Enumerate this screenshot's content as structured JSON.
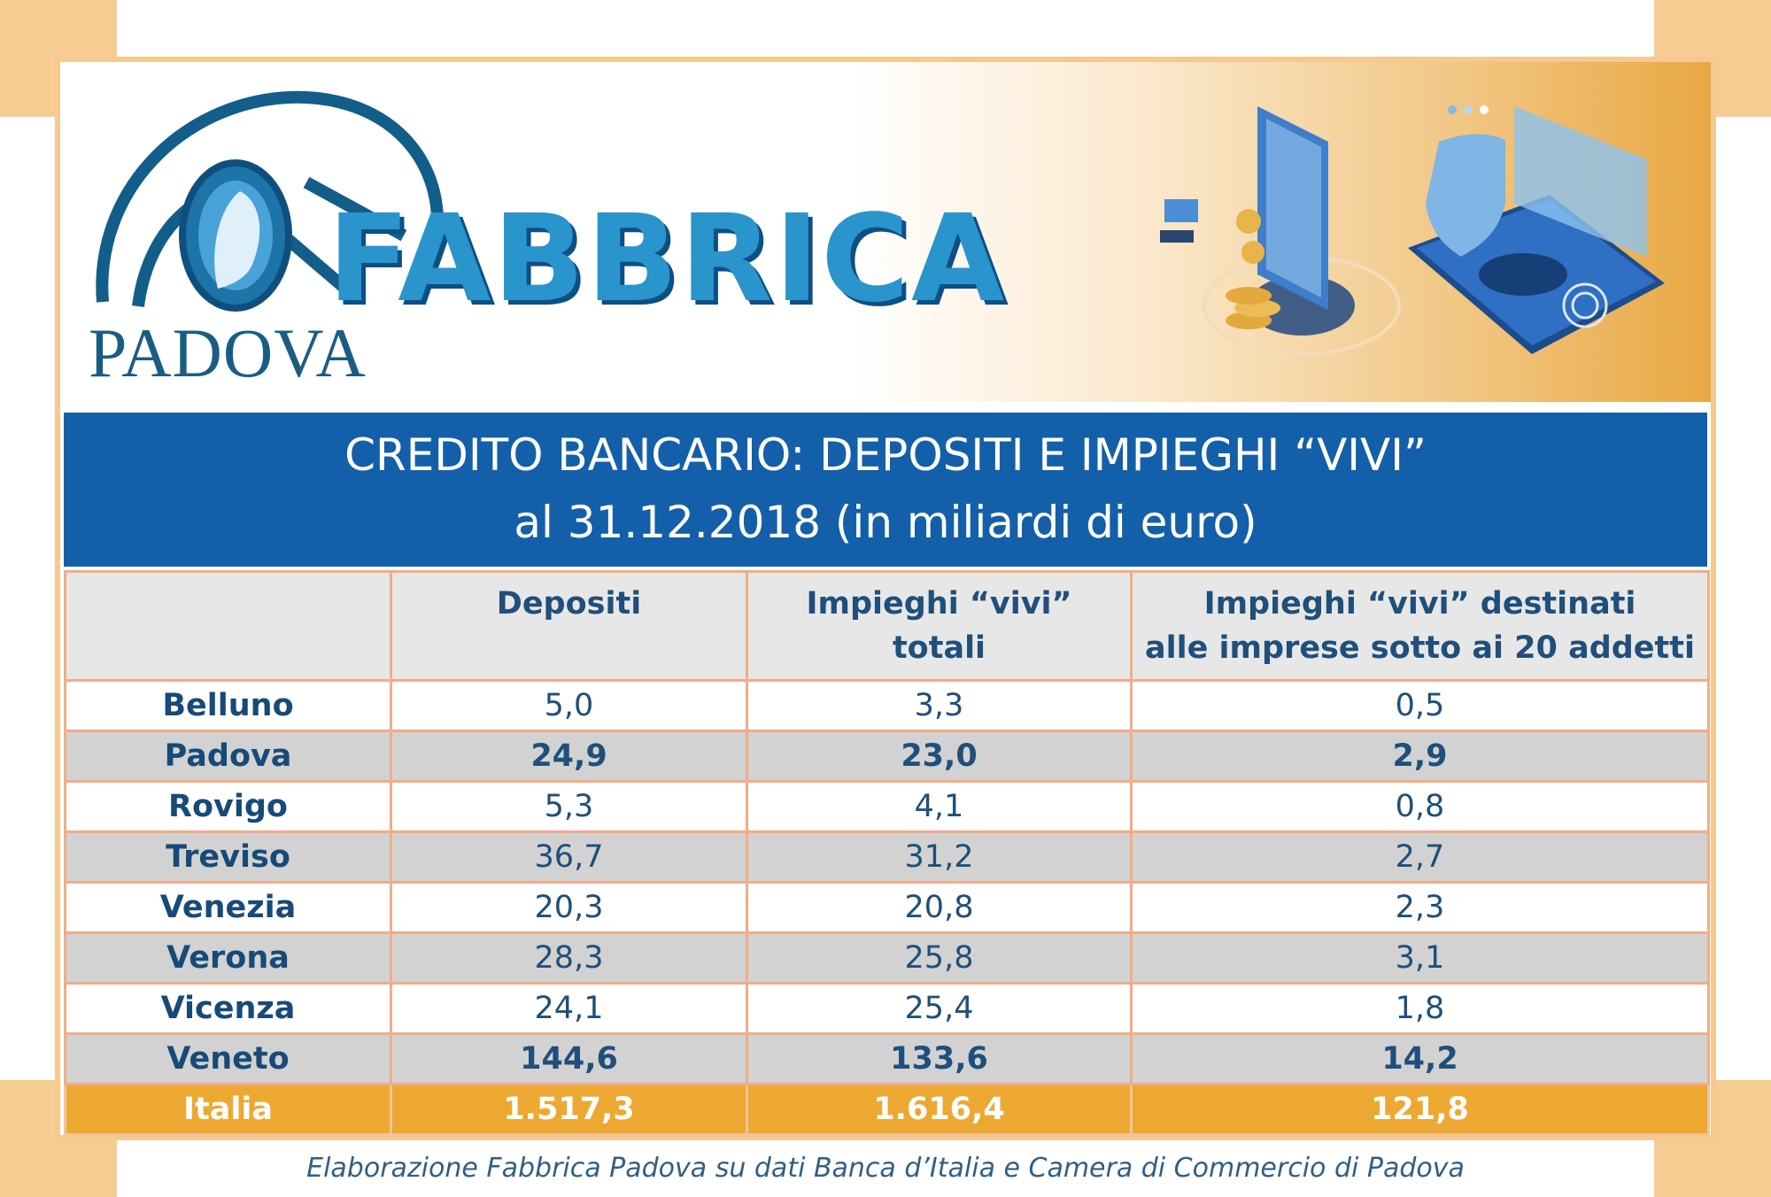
{
  "brand": {
    "name": "FABBRICA",
    "city": "PADOVA",
    "colors": {
      "primary": "#2a94cc",
      "dark": "#0e4f83",
      "accent": "#eda832",
      "title_bar": "#135fa9"
    }
  },
  "title": {
    "line1": "CREDITO BANCARIO: DEPOSITI E IMPIEGHI “VIVI”",
    "line2": "al 31.12.2018 (in miliardi di euro)"
  },
  "table": {
    "headers": {
      "col0": "",
      "col1": "Depositi",
      "col2_line1": "Impieghi “vivi”",
      "col2_line2": "totali",
      "col3_line1": "Impieghi “vivi” destinati",
      "col3_line2": "alle imprese sotto ai 20 addetti"
    },
    "rows": [
      {
        "name": "Belluno",
        "depositi": "5,0",
        "impieghi": "3,3",
        "piccole": "0,5"
      },
      {
        "name": "Padova",
        "depositi": "24,9",
        "impieghi": "23,0",
        "piccole": "2,9"
      },
      {
        "name": "Rovigo",
        "depositi": "5,3",
        "impieghi": "4,1",
        "piccole": "0,8"
      },
      {
        "name": "Treviso",
        "depositi": "36,7",
        "impieghi": "31,2",
        "piccole": "2,7"
      },
      {
        "name": "Venezia",
        "depositi": "20,3",
        "impieghi": "20,8",
        "piccole": "2,3"
      },
      {
        "name": "Verona",
        "depositi": "28,3",
        "impieghi": "25,8",
        "piccole": "3,1"
      },
      {
        "name": "Vicenza",
        "depositi": "24,1",
        "impieghi": "25,4",
        "piccole": "1,8"
      },
      {
        "name": "Veneto",
        "depositi": "144,6",
        "impieghi": "133,6",
        "piccole": "14,2"
      },
      {
        "name": "Italia",
        "depositi": "1.517,3",
        "impieghi": "1.616,4",
        "piccole": "121,8"
      }
    ]
  },
  "source": "Elaborazione Fabbrica Padova su dati Banca d’Italia e Camera di Commercio di Padova",
  "icons": [
    "fabbrica-padova-logo",
    "smartphone-coins-illustration",
    "shield-fingerprint-illustration"
  ]
}
